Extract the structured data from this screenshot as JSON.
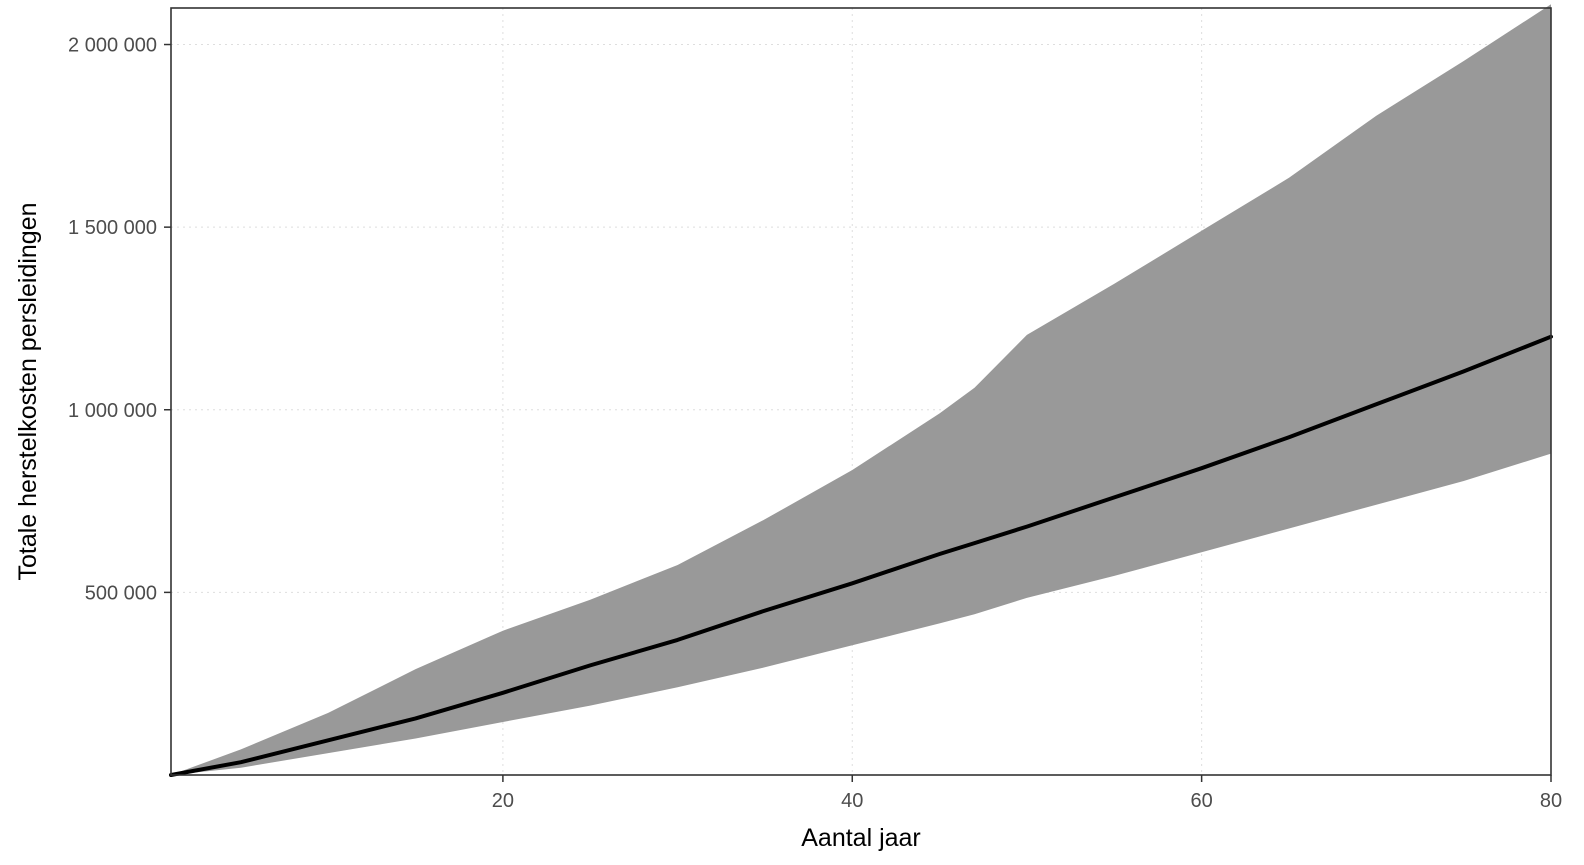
{
  "chart_data": {
    "type": "area",
    "xlabel": "Aantal jaar",
    "ylabel": "Totale herstelkosten persleidingen",
    "xlim": [
      1,
      80
    ],
    "ylim": [
      0,
      2100000
    ],
    "x_ticks": [
      20,
      40,
      60,
      80
    ],
    "x_tick_labels": [
      "20",
      "40",
      "60",
      "80"
    ],
    "y_ticks": [
      500000,
      1000000,
      1500000,
      2000000
    ],
    "y_tick_labels": [
      "500 000",
      "1 000 000",
      "1 500 000",
      "2 000 000"
    ],
    "grid": true,
    "legend": "none",
    "x": [
      1,
      5,
      10,
      15,
      20,
      25,
      30,
      35,
      40,
      45,
      47,
      50,
      55,
      60,
      65,
      70,
      75,
      80
    ],
    "series": [
      {
        "role": "median",
        "color": "#000000",
        "values": [
          0,
          35000,
          95000,
          155000,
          225000,
          300000,
          370000,
          450000,
          525000,
          605000,
          635000,
          680000,
          760000,
          840000,
          925000,
          1015000,
          1105000,
          1200000
        ]
      },
      {
        "role": "upper-band",
        "color": "#999999",
        "values": [
          0,
          70000,
          170000,
          290000,
          395000,
          480000,
          575000,
          700000,
          835000,
          990000,
          1060000,
          1205000,
          1345000,
          1490000,
          1635000,
          1805000,
          1955000,
          2110000
        ]
      },
      {
        "role": "lower-band",
        "color": "#999999",
        "values": [
          0,
          20000,
          60000,
          100000,
          145000,
          190000,
          240000,
          295000,
          355000,
          415000,
          440000,
          485000,
          545000,
          610000,
          675000,
          740000,
          805000,
          880000
        ]
      }
    ]
  }
}
